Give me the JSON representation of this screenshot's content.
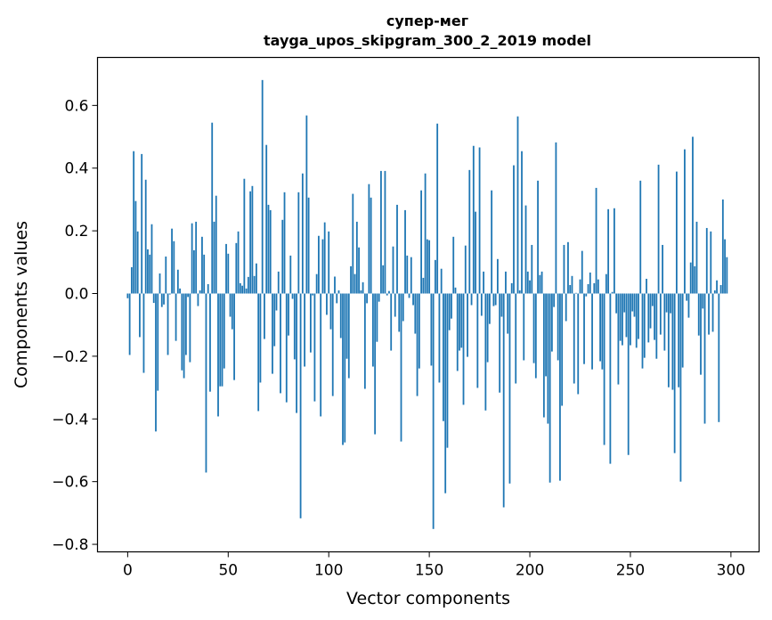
{
  "chart_data": {
    "type": "bar",
    "title": "супер-мег",
    "subtitle": "tayga_upos_skipgram_300_2_2019 model",
    "xlabel": "Vector components",
    "ylabel": "Components values",
    "xlim": [
      -15,
      314
    ],
    "ylim": [
      -0.824,
      0.753
    ],
    "xticks": [
      0,
      50,
      100,
      150,
      200,
      250,
      300
    ],
    "xtick_labels": [
      "0",
      "50",
      "100",
      "150",
      "200",
      "250",
      "300"
    ],
    "yticks": [
      -0.8,
      -0.6,
      -0.4,
      -0.2,
      0.0,
      0.2,
      0.4,
      0.6
    ],
    "ytick_labels": [
      "−0.8",
      "−0.6",
      "−0.4",
      "−0.2",
      "0.0",
      "0.2",
      "0.4",
      "0.6"
    ],
    "grid": false,
    "color": "#1f77b4",
    "values": [
      -0.015,
      -0.196,
      0.084,
      0.454,
      0.295,
      0.198,
      -0.139,
      0.445,
      -0.253,
      0.363,
      0.141,
      0.124,
      0.221,
      -0.03,
      -0.44,
      -0.31,
      0.064,
      -0.043,
      -0.035,
      0.118,
      -0.196,
      -0.003,
      0.207,
      0.167,
      -0.151,
      0.076,
      0.016,
      -0.245,
      -0.27,
      -0.196,
      -0.011,
      -0.219,
      0.224,
      0.138,
      0.229,
      -0.04,
      0.01,
      0.181,
      0.124,
      -0.571,
      0.03,
      -0.313,
      0.545,
      0.229,
      0.312,
      -0.392,
      -0.296,
      -0.296,
      -0.239,
      0.158,
      0.127,
      -0.074,
      -0.114,
      -0.276,
      0.161,
      0.198,
      0.033,
      0.025,
      0.366,
      0.016,
      0.053,
      0.326,
      0.343,
      0.056,
      0.096,
      -0.375,
      -0.284,
      0.681,
      -0.145,
      0.474,
      0.283,
      0.266,
      -0.256,
      -0.168,
      -0.054,
      0.07,
      -0.318,
      0.235,
      0.323,
      -0.347,
      -0.134,
      0.121,
      -0.017,
      -0.21,
      -0.381,
      0.323,
      -0.717,
      0.383,
      -0.233,
      0.568,
      0.306,
      -0.188,
      -0.006,
      -0.344,
      0.062,
      0.184,
      -0.392,
      0.173,
      0.227,
      -0.068,
      0.198,
      -0.114,
      -0.327,
      0.054,
      -0.031,
      0.01,
      -0.142,
      -0.483,
      -0.475,
      -0.208,
      -0.27,
      0.087,
      0.318,
      0.062,
      0.229,
      0.147,
      0.01,
      0.036,
      -0.304,
      -0.031,
      0.349,
      0.306,
      -0.233,
      -0.449,
      -0.154,
      -0.026,
      0.391,
      0.09,
      0.391,
      -0.006,
      0.008,
      -0.182,
      0.15,
      -0.074,
      0.283,
      -0.122,
      -0.472,
      -0.088,
      0.266,
      0.121,
      -0.014,
      0.116,
      -0.037,
      -0.128,
      -0.327,
      -0.239,
      0.329,
      0.05,
      0.383,
      0.173,
      0.17,
      -0.23,
      -0.751,
      0.107,
      0.542,
      -0.284,
      0.079,
      -0.407,
      -0.637,
      -0.492,
      -0.117,
      -0.08,
      0.181,
      0.019,
      -0.247,
      -0.182,
      -0.173,
      -0.355,
      0.153,
      -0.202,
      0.394,
      -0.037,
      0.471,
      0.261,
      -0.301,
      0.466,
      -0.071,
      0.07,
      -0.373,
      -0.219,
      -0.097,
      0.329,
      -0.04,
      -0.037,
      0.11,
      -0.316,
      -0.074,
      -0.682,
      0.07,
      -0.128,
      -0.606,
      0.033,
      0.409,
      -0.287,
      0.565,
      0.01,
      0.454,
      -0.213,
      0.281,
      0.07,
      0.042,
      0.155,
      -0.222,
      -0.27,
      0.36,
      0.059,
      0.07,
      -0.395,
      -0.264,
      -0.415,
      -0.603,
      -0.185,
      -0.043,
      0.482,
      -0.213,
      -0.597,
      -0.358,
      0.155,
      -0.088,
      0.164,
      0.027,
      0.056,
      -0.287,
      0.002,
      -0.321,
      0.045,
      0.136,
      -0.225,
      -0.009,
      0.03,
      0.067,
      -0.242,
      0.033,
      0.337,
      0.045,
      -0.216,
      -0.242,
      -0.483,
      0.062,
      0.269,
      -0.543,
      0.005,
      0.272,
      -0.063,
      -0.29,
      -0.151,
      -0.165,
      -0.06,
      -0.139,
      -0.515,
      -0.165,
      -0.057,
      -0.074,
      -0.173,
      -0.145,
      0.36,
      -0.239,
      -0.205,
      0.047,
      -0.156,
      -0.111,
      -0.04,
      -0.148,
      -0.208,
      0.411,
      -0.131,
      0.155,
      -0.182,
      -0.06,
      -0.299,
      -0.063,
      -0.307,
      -0.509,
      0.389,
      -0.299,
      -0.6,
      -0.236,
      0.46,
      -0.023,
      -0.077,
      0.099,
      0.5,
      0.087,
      0.229,
      -0.134,
      -0.259,
      -0.048,
      -0.415,
      0.209,
      -0.131,
      0.198,
      -0.122,
      0.01,
      0.042,
      -0.41,
      0.027,
      0.3,
      0.173,
      0.116
    ]
  }
}
